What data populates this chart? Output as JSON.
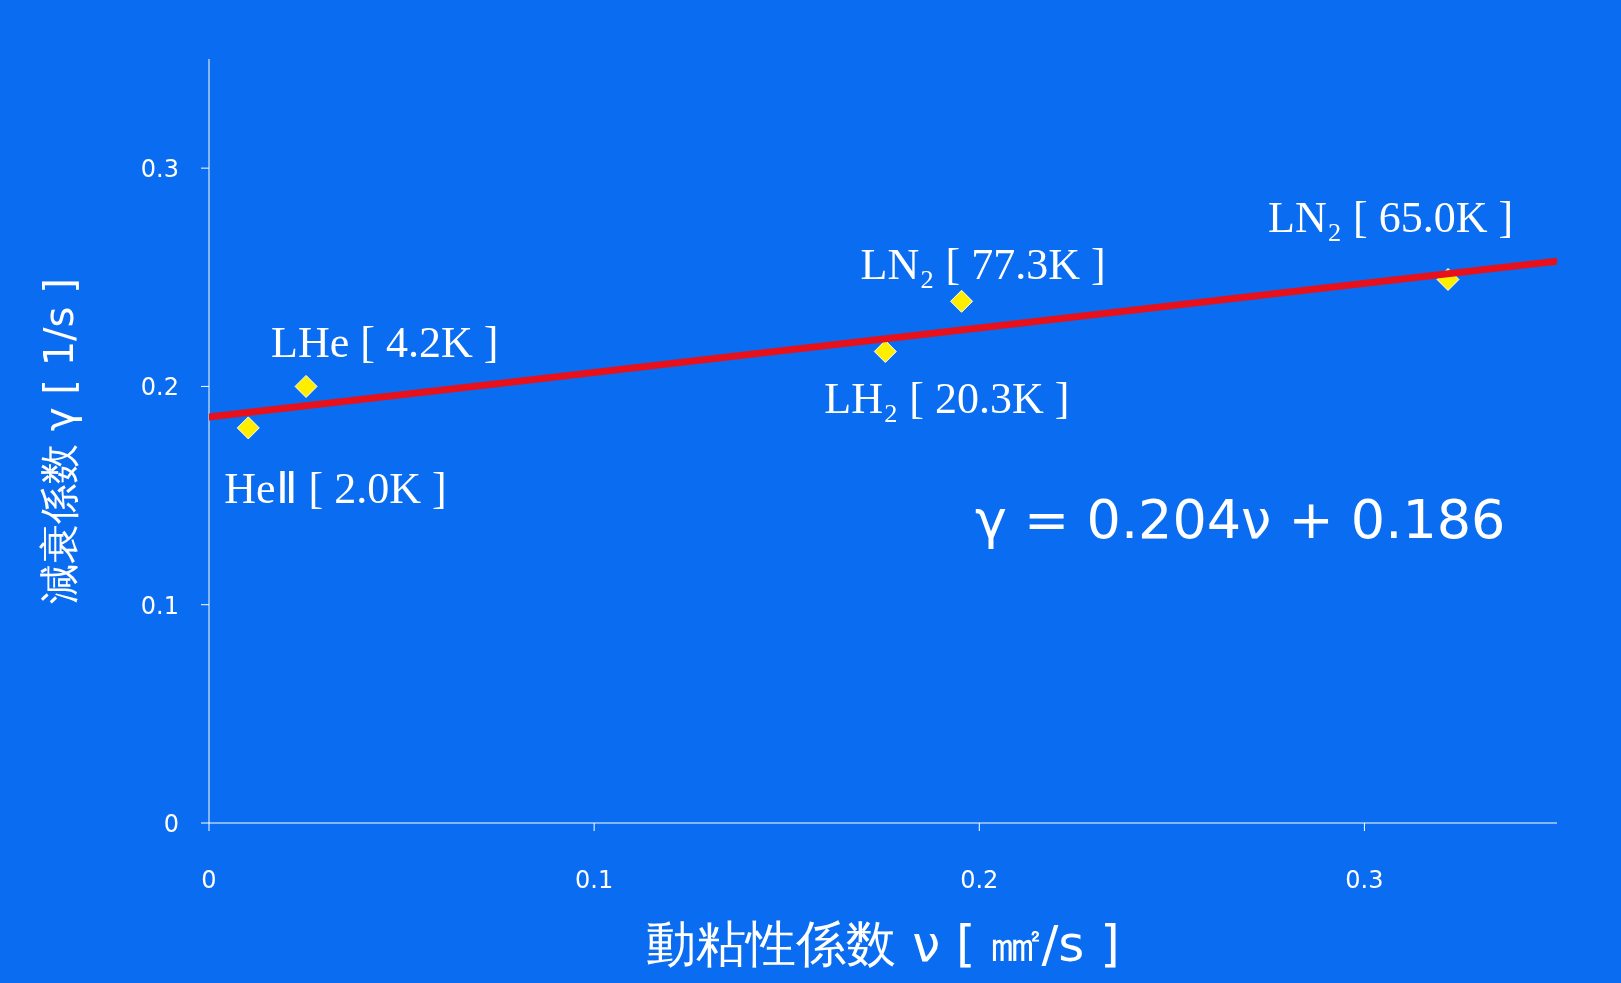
{
  "chart_data": {
    "type": "scatter",
    "xlabel": "動粘性係数 ν [ ㎟/s ]",
    "ylabel": "減衰係数 γ [ 1/s ]",
    "xlim": [
      0,
      0.35
    ],
    "xticks": [
      0,
      0.1,
      0.2,
      0.3
    ],
    "ylim": [
      0,
      0.35
    ],
    "yticks": [
      0,
      0.1,
      0.2,
      0.3
    ],
    "grid": false,
    "series": [
      {
        "marker": "diamond",
        "color": "#ffee00",
        "x": [
          0.0102,
          0.0252,
          0.1756,
          0.1954,
          0.3217
        ],
        "values": [
          0.181,
          0.2,
          0.216,
          0.239,
          0.249
        ]
      },
      {
        "type": "line",
        "marker": "none",
        "color": "#e8101a",
        "x": [
          0,
          0.35
        ],
        "values": [
          0.186,
          0.2574
        ]
      }
    ],
    "annotations": [
      {
        "text": "HeⅡ [ 2.0K ]",
        "x": 0.0102,
        "y": 0.181
      },
      {
        "text": "LHe [ 4.2K ]",
        "x": 0.0252,
        "y": 0.2
      },
      {
        "text": "LH₂ [ 20.3K ]",
        "x": 0.1756,
        "y": 0.216
      },
      {
        "text": "LN₂ [ 77.3K ]",
        "x": 0.1954,
        "y": 0.239
      },
      {
        "text": "LN₂ [ 65.0K ]",
        "x": 0.3217,
        "y": 0.249
      },
      "γ = 0.204ν + 0.186"
    ]
  }
}
